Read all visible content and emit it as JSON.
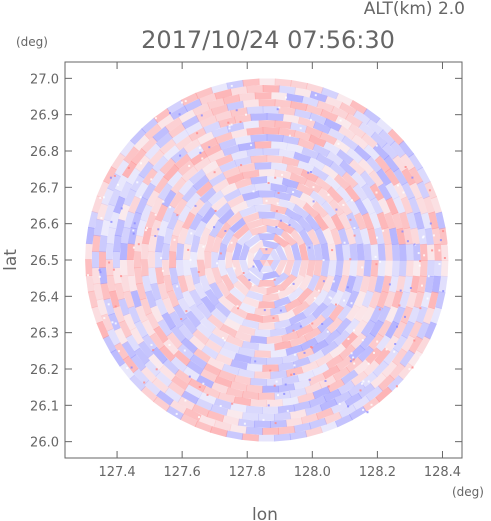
{
  "chart_data": {
    "type": "heatmap",
    "title": "2017/10/24 07:56:30",
    "subtitle": "ALT(km) 2.0",
    "xlabel": "lon",
    "ylabel": "lat",
    "x_unit": "(deg)",
    "y_unit": "(deg)",
    "xlim": [
      127.24,
      128.46
    ],
    "ylim": [
      25.955,
      27.045
    ],
    "x_ticks": [
      127.4,
      127.6,
      127.8,
      128.0,
      128.2,
      128.4
    ],
    "x_tick_labels": [
      "127.4",
      "127.6",
      "127.8",
      "128.0",
      "128.2",
      "128.4"
    ],
    "y_ticks": [
      26.0,
      26.1,
      26.2,
      26.3,
      26.4,
      26.5,
      26.6,
      26.7,
      26.8,
      26.9,
      27.0
    ],
    "y_tick_labels": [
      "26.0",
      "26.1",
      "26.2",
      "26.3",
      "26.4",
      "26.5",
      "26.6",
      "26.7",
      "26.8",
      "26.9",
      "27.0"
    ],
    "data_region": {
      "shape": "disk",
      "center_lon": 127.86,
      "center_lat": 26.5,
      "radius_lat": 0.5,
      "radius_lon": 0.56
    },
    "grid": false,
    "colors": {
      "positive": "#ff8a8a",
      "negative": "#8a8aff",
      "axis": "#666666"
    }
  }
}
